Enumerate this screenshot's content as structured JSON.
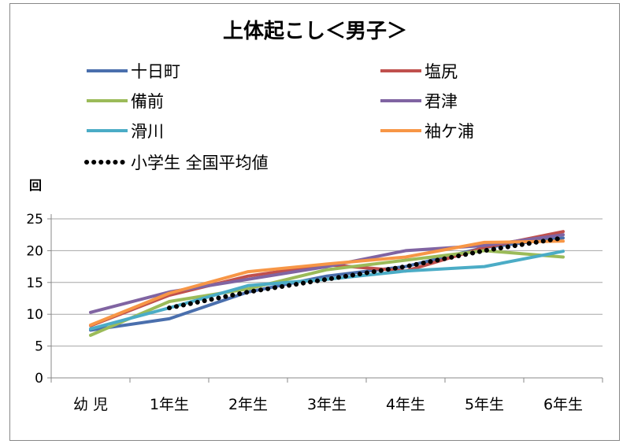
{
  "chart_data": {
    "type": "line",
    "title": "上体起こし＜男子＞",
    "ylabel": "回",
    "xlabel": "",
    "categories": [
      "幼 児",
      "1年生",
      "2年生",
      "3年生",
      "4年生",
      "5年生",
      "6年生"
    ],
    "ylim": [
      0,
      25
    ],
    "yticks": [
      0,
      5,
      10,
      15,
      20,
      25
    ],
    "grid": true,
    "legend_position": "top",
    "series": [
      {
        "name": "十日町",
        "color": "#4a6fad",
        "style": "solid",
        "values": [
          7.5,
          9.3,
          13.5,
          16.0,
          17.5,
          20.5,
          22.0
        ]
      },
      {
        "name": "塩尻",
        "color": "#c0504d",
        "style": "solid",
        "values": [
          8.2,
          13.0,
          16.0,
          17.8,
          16.8,
          20.5,
          23.0
        ]
      },
      {
        "name": "備前",
        "color": "#9bbb59",
        "style": "solid",
        "values": [
          6.7,
          12.0,
          14.0,
          17.0,
          18.5,
          20.0,
          19.0
        ]
      },
      {
        "name": "君津",
        "color": "#8064a2",
        "style": "solid",
        "values": [
          10.3,
          13.5,
          15.5,
          17.5,
          20.0,
          20.8,
          22.5
        ]
      },
      {
        "name": "滑川",
        "color": "#4bacc6",
        "style": "solid",
        "values": [
          7.7,
          11.0,
          14.5,
          15.5,
          16.8,
          17.5,
          19.9
        ]
      },
      {
        "name": "袖ケ浦",
        "color": "#f79646",
        "style": "solid",
        "values": [
          8.3,
          13.3,
          16.7,
          17.9,
          19.0,
          21.3,
          21.5
        ]
      },
      {
        "name": "小学生 全国平均値",
        "color": "#000000",
        "style": "dotted",
        "values": [
          null,
          11.0,
          13.5,
          15.5,
          17.5,
          20.0,
          22.0
        ]
      }
    ]
  }
}
